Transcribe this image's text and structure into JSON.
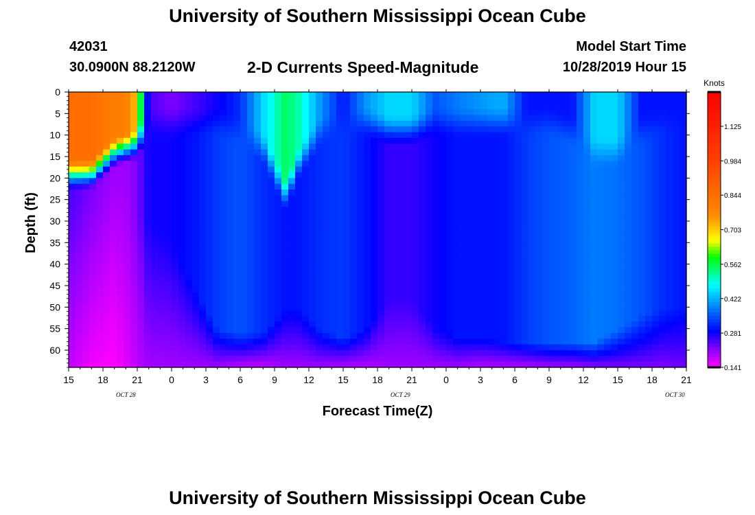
{
  "page": {
    "title_top": "University of Southern Mississippi Ocean Cube",
    "title_bottom": "University of Southern Mississippi Ocean Cube",
    "station_id": "42031",
    "station_coords": "30.0900N 88.2120W",
    "plot_title": "2-D Currents Speed-Magnitude",
    "model_start_label": "Model Start Time",
    "model_start_value": "10/28/2019 Hour 15"
  },
  "chart_data": {
    "type": "heatmap",
    "title": "2-D Currents Speed-Magnitude",
    "xlabel": "Forecast Time(Z)",
    "ylabel": "Depth (ft)",
    "x_ticks": [
      "15",
      "18",
      "21",
      "0",
      "3",
      "6",
      "9",
      "12",
      "15",
      "18",
      "21",
      "0",
      "3",
      "6",
      "9",
      "12",
      "15",
      "18",
      "21"
    ],
    "date_labels": [
      {
        "text": "OCT 28",
        "x_hour": 5
      },
      {
        "text": "OCT 29",
        "x_hour": 29
      },
      {
        "text": "OCT 30",
        "x_hour": 53
      }
    ],
    "x_range_hours": [
      0,
      54
    ],
    "y_ticks": [
      "0",
      "5",
      "10",
      "15",
      "20",
      "25",
      "30",
      "35",
      "40",
      "45",
      "50",
      "55",
      "60"
    ],
    "ylim_ft": [
      0,
      64
    ],
    "colorbar": {
      "label": "Knots",
      "ticks": [
        "1.125",
        "0.984",
        "0.844",
        "0.703",
        "0.562",
        "0.422",
        "0.281",
        "0.141"
      ],
      "range": [
        0.141,
        1.265
      ]
    },
    "time_hours": [
      0,
      2,
      4,
      5,
      6,
      7,
      9,
      11,
      13,
      15,
      17,
      19,
      20,
      22,
      24,
      26,
      28,
      30,
      32,
      34,
      36,
      38,
      40,
      42,
      44,
      46,
      48,
      50,
      52,
      54
    ],
    "surface_speed": [
      0.85,
      0.85,
      0.8,
      0.8,
      0.7,
      0.25,
      0.22,
      0.25,
      0.28,
      0.32,
      0.45,
      0.55,
      0.52,
      0.4,
      0.3,
      0.4,
      0.45,
      0.45,
      0.35,
      0.38,
      0.4,
      0.42,
      0.3,
      0.3,
      0.3,
      0.45,
      0.45,
      0.3,
      0.3,
      0.3
    ],
    "cline_depth_ft": [
      15,
      15,
      10,
      9,
      8,
      3,
      3,
      3,
      3,
      5,
      9,
      20,
      13,
      5,
      3,
      3,
      5,
      5,
      3,
      3,
      3,
      3,
      3,
      3,
      5,
      10,
      10,
      5,
      3,
      3
    ],
    "midlevel_speed": [
      0.25,
      0.22,
      0.2,
      0.2,
      0.22,
      0.28,
      0.28,
      0.3,
      0.33,
      0.35,
      0.32,
      0.3,
      0.3,
      0.32,
      0.33,
      0.3,
      0.26,
      0.26,
      0.28,
      0.3,
      0.3,
      0.3,
      0.33,
      0.35,
      0.36,
      0.38,
      0.37,
      0.35,
      0.32,
      0.3
    ],
    "bottom_decay_depth_ft": [
      25,
      25,
      20,
      22,
      28,
      30,
      35,
      45,
      55,
      56,
      56,
      50,
      50,
      55,
      57,
      55,
      48,
      48,
      55,
      57,
      57,
      58,
      58,
      58,
      58,
      58,
      55,
      52,
      50,
      50
    ],
    "bottom_speed": [
      0.18,
      0.15,
      0.14,
      0.16,
      0.18,
      0.2,
      0.2,
      0.2,
      0.2,
      0.18,
      0.18,
      0.2,
      0.2,
      0.2,
      0.19,
      0.19,
      0.2,
      0.2,
      0.2,
      0.2,
      0.19,
      0.19,
      0.19,
      0.2,
      0.2,
      0.21,
      0.22,
      0.22,
      0.22,
      0.23
    ]
  }
}
